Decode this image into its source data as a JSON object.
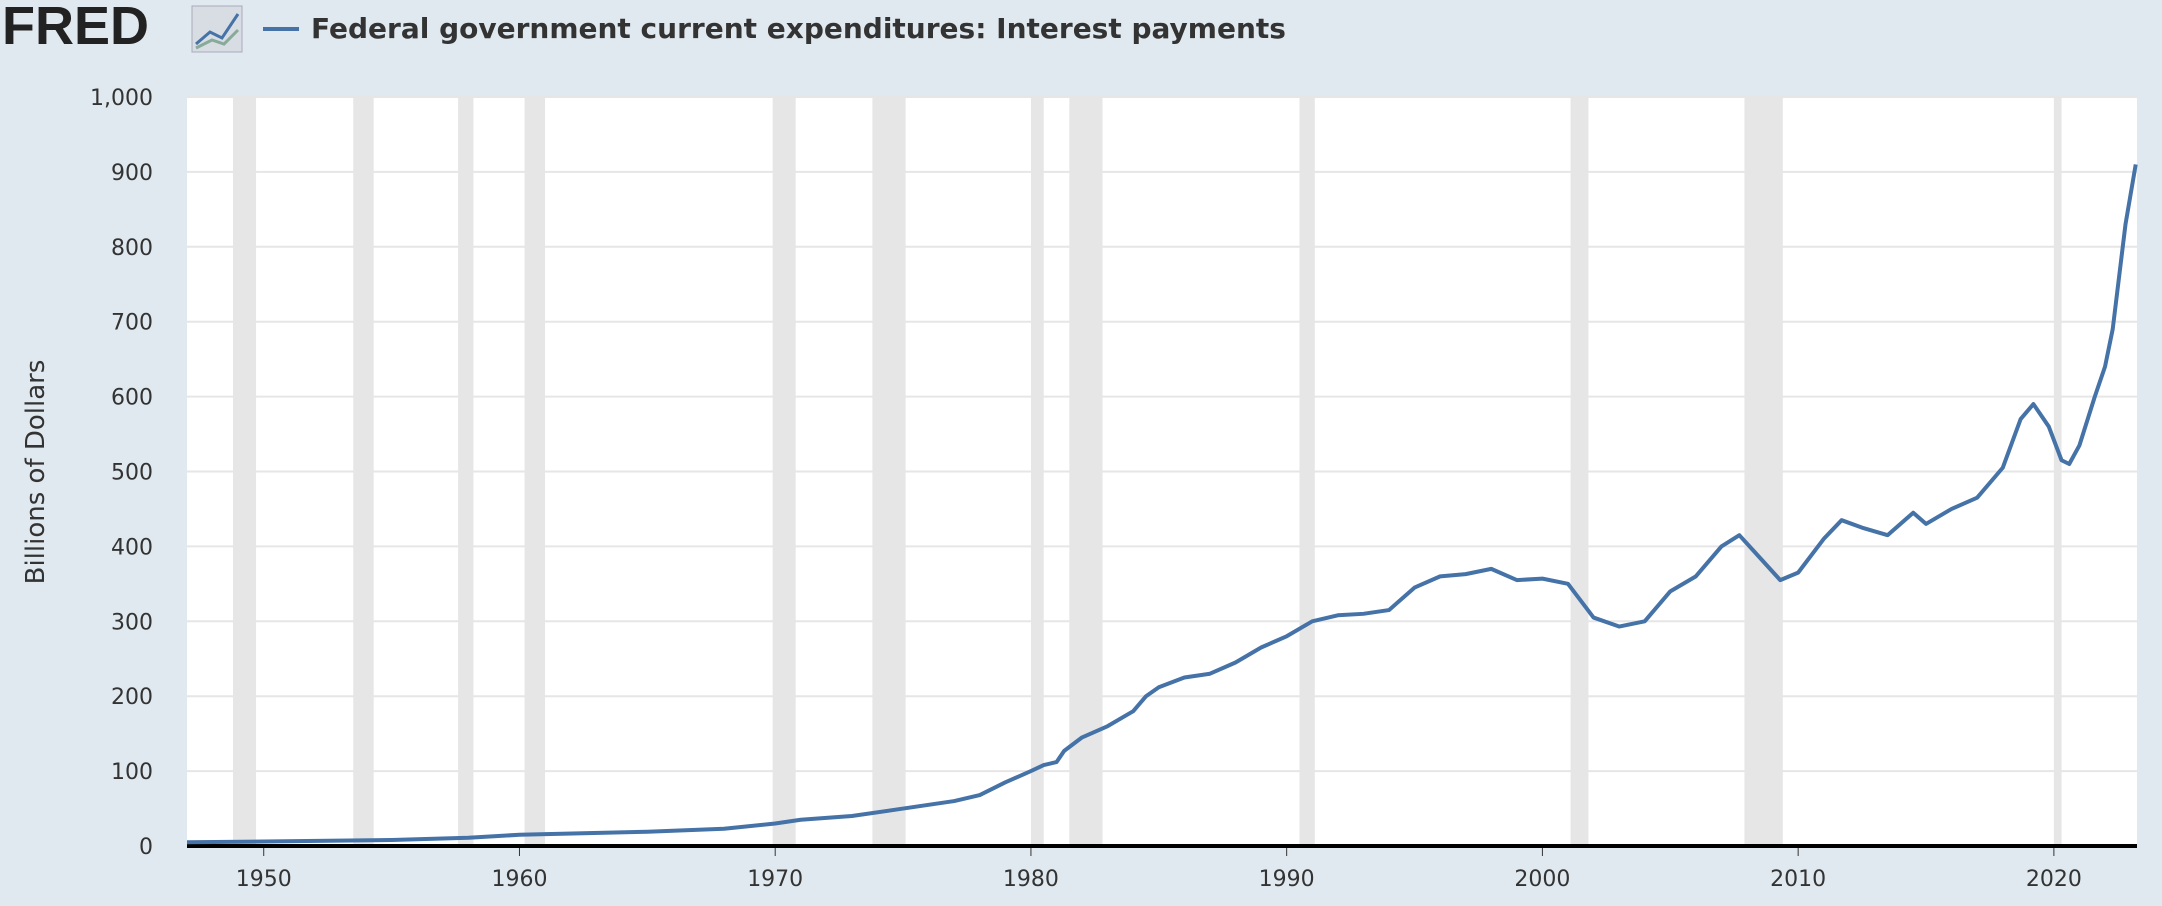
{
  "logo": "FRED",
  "chart_data": {
    "type": "line",
    "title": "Federal government current expenditures: Interest payments",
    "y_label": "Billions of Dollars",
    "xlim": [
      1947,
      2023.25
    ],
    "xticks": [
      1950,
      1960,
      1970,
      1980,
      1990,
      2000,
      2010,
      2020
    ],
    "ylim": [
      0,
      1000
    ],
    "yticks": [
      0,
      100,
      200,
      300,
      400,
      500,
      600,
      700,
      800,
      900,
      {
        "value": 1000,
        "label": "1,000"
      }
    ],
    "grid": true,
    "recessions": [
      [
        1948.8,
        1949.7
      ],
      [
        1953.5,
        1954.3
      ],
      [
        1957.6,
        1958.2
      ],
      [
        1960.2,
        1961.0
      ],
      [
        1969.9,
        1970.8
      ],
      [
        1973.8,
        1975.1
      ],
      [
        1980.0,
        1980.5
      ],
      [
        1981.5,
        1982.8
      ],
      [
        1990.5,
        1991.1
      ],
      [
        2001.1,
        2001.8
      ],
      [
        2007.9,
        2009.4
      ],
      [
        2020.0,
        2020.3
      ]
    ],
    "recession_color": "#e6e6e6",
    "series": [
      {
        "name": "Federal government current expenditures: Interest payments",
        "color": "#4572a7",
        "x": [
          1947,
          1950,
          1955,
          1958,
          1960,
          1965,
          1968,
          1970,
          1971,
          1973,
          1975,
          1977,
          1978,
          1979,
          1980,
          1980.5,
          1981,
          1981.3,
          1982,
          1983,
          1984,
          1984.5,
          1985,
          1986,
          1987,
          1988,
          1989,
          1990,
          1991,
          1992,
          1993,
          1994,
          1995,
          1996,
          1997,
          1998,
          1999,
          2000,
          2001,
          2002,
          2003,
          2004,
          2005,
          2006,
          2007,
          2007.7,
          2008.5,
          2009.3,
          2010,
          2011,
          2011.7,
          2012.5,
          2013.5,
          2014.5,
          2015,
          2016,
          2017,
          2018,
          2018.7,
          2019.2,
          2019.8,
          2020.3,
          2020.6,
          2021,
          2021.6,
          2022,
          2022.3,
          2022.8,
          2023.2
        ],
        "values": [
          5,
          6,
          8,
          11,
          15,
          19,
          23,
          30,
          35,
          40,
          50,
          60,
          68,
          85,
          100,
          108,
          112,
          127,
          145,
          160,
          180,
          200,
          212,
          225,
          230,
          245,
          265,
          280,
          300,
          308,
          310,
          315,
          345,
          360,
          363,
          370,
          355,
          357,
          350,
          305,
          293,
          300,
          340,
          360,
          400,
          415,
          385,
          355,
          365,
          410,
          435,
          425,
          415,
          445,
          430,
          450,
          465,
          505,
          570,
          590,
          560,
          515,
          510,
          535,
          600,
          640,
          690,
          830,
          910
        ]
      }
    ]
  }
}
